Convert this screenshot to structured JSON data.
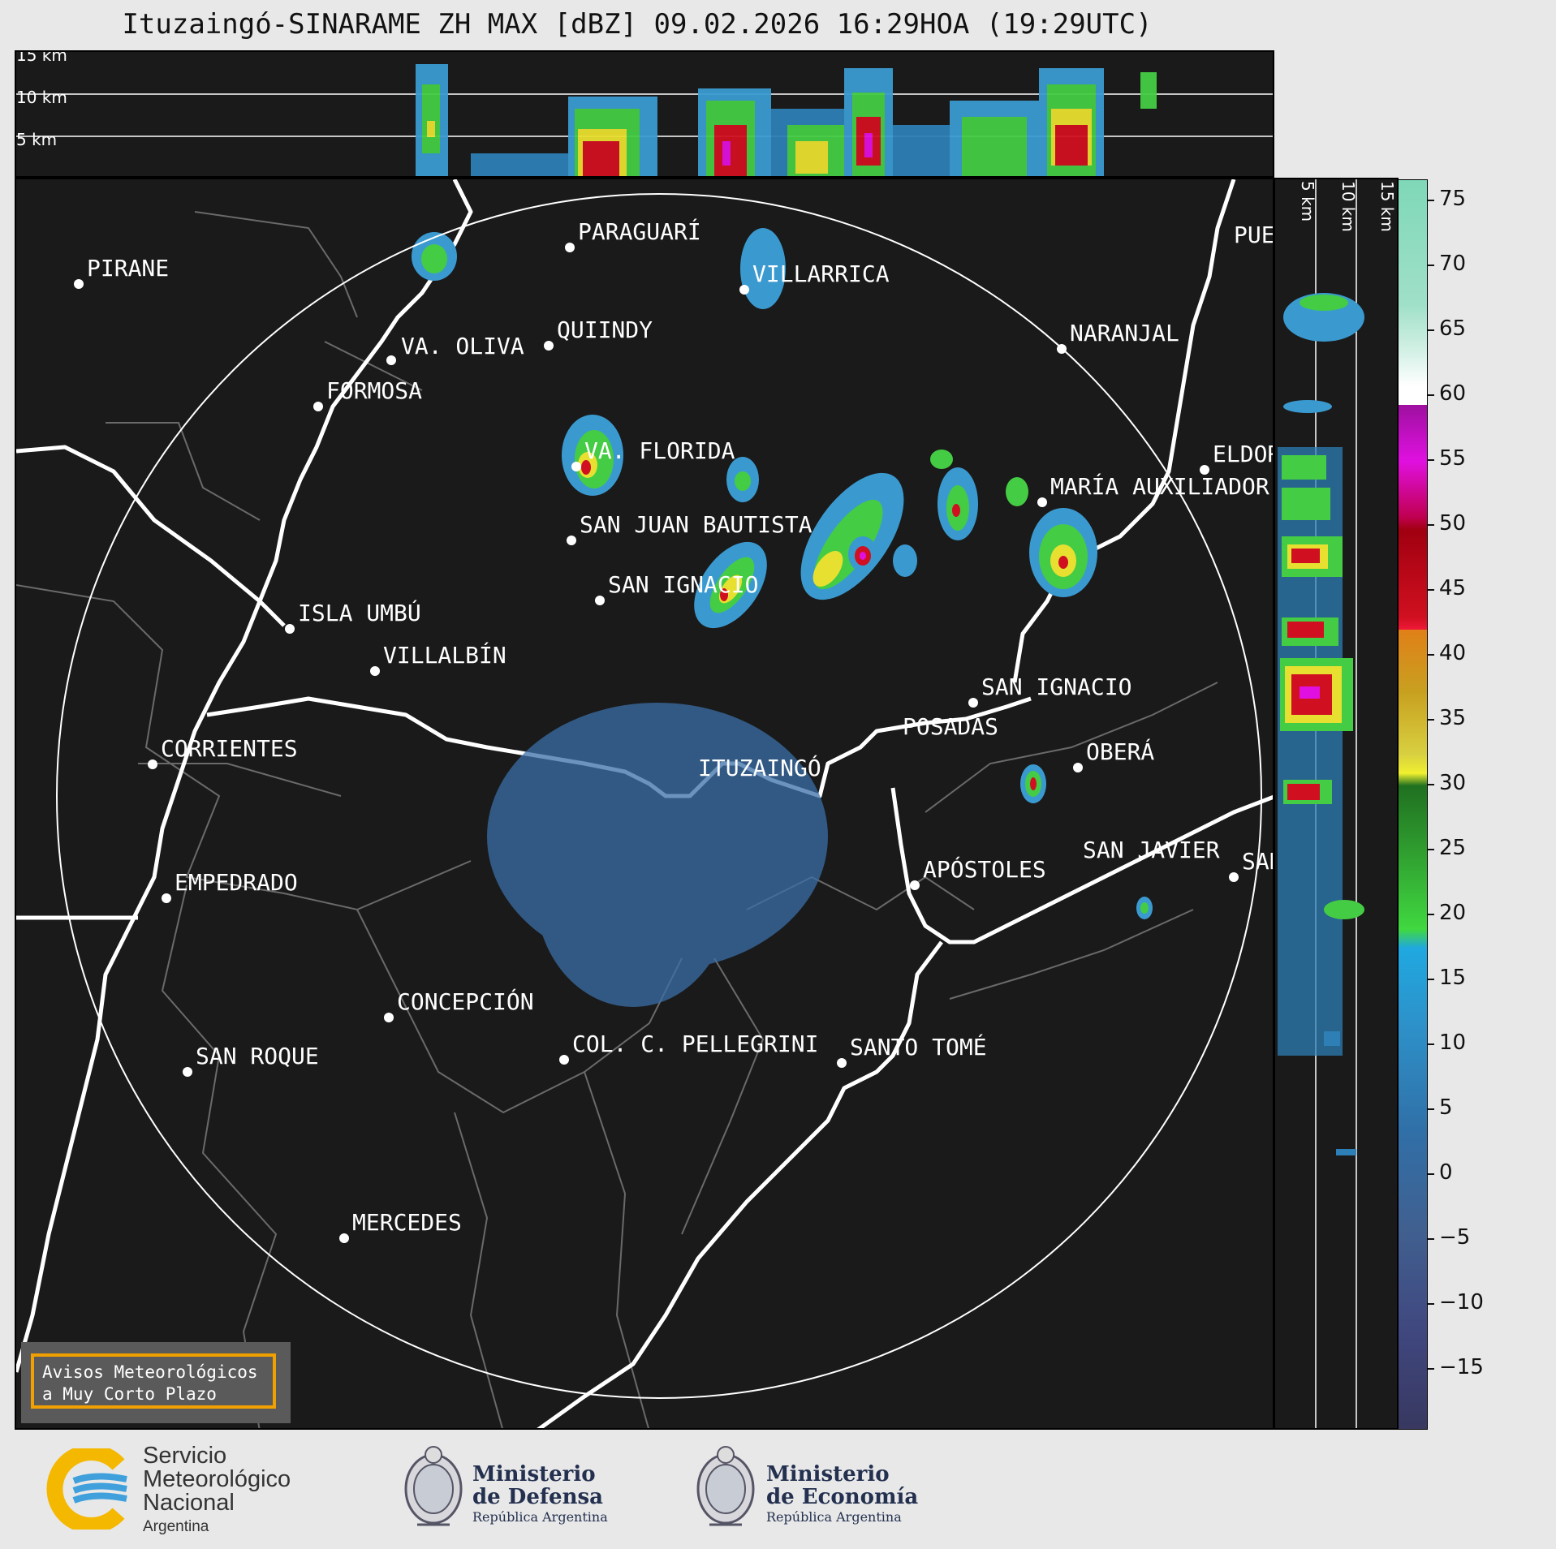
{
  "title": "Ituzaingó-SINARAME ZH MAX [dBZ] 09.02.2026 16:29HOA (19:29UTC)",
  "height_labels": [
    "15 km",
    "10 km",
    "5 km"
  ],
  "side_height_labels": [
    "5 km",
    "10 km",
    "15 km"
  ],
  "cities": [
    {
      "name": "PIRANE"
    },
    {
      "name": "PARAGUARÍ"
    },
    {
      "name": "VILLARRICA"
    },
    {
      "name": "VA. OLIVA"
    },
    {
      "name": "QUIINDY"
    },
    {
      "name": "NARANJAL"
    },
    {
      "name": "FORMOSA"
    },
    {
      "name": "VA. FLORIDA"
    },
    {
      "name": "ELDOR"
    },
    {
      "name": "MARÍA AUXILIADOR"
    },
    {
      "name": "SAN JUAN BAUTISTA"
    },
    {
      "name": "SAN IGNACIO"
    },
    {
      "name": "ISLA UMBÚ"
    },
    {
      "name": "VILLALBÍN"
    },
    {
      "name": "SAN IGNACIO"
    },
    {
      "name": "POSADAS"
    },
    {
      "name": "CORRIENTES"
    },
    {
      "name": "ITUZAINGÓ"
    },
    {
      "name": "OBERÁ"
    },
    {
      "name": "EMPEDRADO"
    },
    {
      "name": "APÓSTOLES"
    },
    {
      "name": "SAN JAVIER"
    },
    {
      "name": "SAN"
    },
    {
      "name": "CONCEPCIÓN"
    },
    {
      "name": "COL. C. PELLEGRINI"
    },
    {
      "name": "SANTO TOMÉ"
    },
    {
      "name": "SAN ROQUE"
    },
    {
      "name": "MERCEDES"
    },
    {
      "name": "PUEI"
    }
  ],
  "warning_box": {
    "line1": "Avisos Meteorológicos",
    "line2": "a Muy Corto Plazo"
  },
  "colorbar": {
    "unit": "dBZ",
    "ticks": [
      "75",
      "70",
      "65",
      "60",
      "55",
      "50",
      "45",
      "40",
      "35",
      "30",
      "25",
      "20",
      "15",
      "10",
      "5",
      "0",
      "−5",
      "−10",
      "−15"
    ],
    "range": [
      -20,
      77
    ]
  },
  "logos": {
    "smn": {
      "line1": "Servicio",
      "line2": "Meteorológico",
      "line3": "Nacional",
      "line4": "Argentina"
    },
    "defensa": {
      "line1": "Ministerio",
      "line2": "de Defensa",
      "line3": "República Argentina"
    },
    "economia": {
      "line1": "Ministerio",
      "line2": "de Economía",
      "line3": "República Argentina"
    }
  }
}
